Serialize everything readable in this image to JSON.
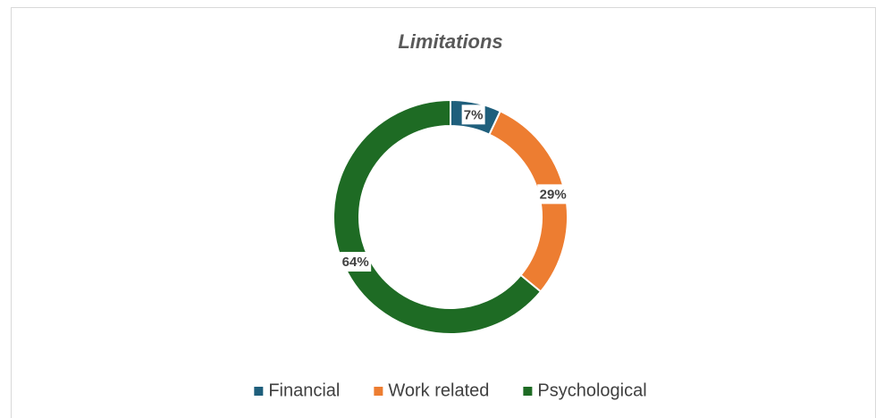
{
  "chart_data": {
    "type": "donut",
    "title": "Limitations",
    "categories": [
      "Financial",
      "Work related",
      "Psychological"
    ],
    "values": [
      7,
      29,
      64
    ],
    "value_labels": [
      "7%",
      "29%",
      "64%"
    ],
    "colors": [
      "#1f5f7c",
      "#ed7d31",
      "#1e6b24"
    ],
    "legend": "bottom"
  }
}
